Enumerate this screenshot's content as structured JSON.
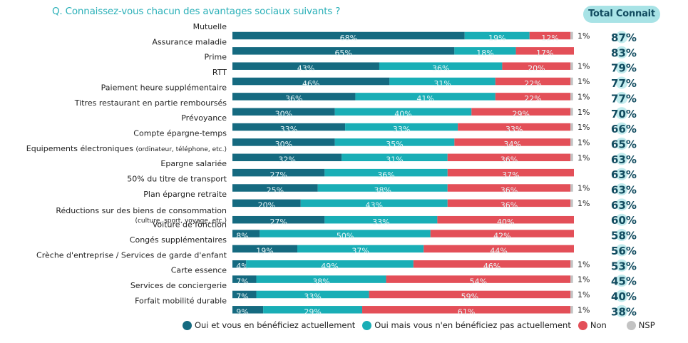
{
  "chart_data": {
    "type": "bar",
    "orientation": "horizontal",
    "stacked": true,
    "title": "Q. Connaissez-vous chacun des avantages sociaux suivants ?",
    "total_header": "Total Connait",
    "categories": [
      {
        "label": "Mutuelle",
        "sub": ""
      },
      {
        "label": "Assurance maladie",
        "sub": ""
      },
      {
        "label": "Prime",
        "sub": ""
      },
      {
        "label": "RTT",
        "sub": ""
      },
      {
        "label": "Paiement heure supplémentaire",
        "sub": ""
      },
      {
        "label": "Titres restaurant en partie remboursés",
        "sub": ""
      },
      {
        "label": "Prévoyance",
        "sub": ""
      },
      {
        "label": "Compte épargne-temps",
        "sub": ""
      },
      {
        "label": "Equipements électroniques",
        "inline_sub": "(ordinateur, téléphone, etc.)",
        "sub": ""
      },
      {
        "label": "Epargne salariée",
        "sub": ""
      },
      {
        "label": "50% du titre de transport",
        "sub": ""
      },
      {
        "label": "Plan épargne retraite",
        "sub": ""
      },
      {
        "label": "Réductions sur des biens de consommation",
        "sub": "(culture, sport, voyage, etc.)"
      },
      {
        "label": "Voiture de fonction",
        "sub": ""
      },
      {
        "label": "Congés supplémentaires",
        "sub": ""
      },
      {
        "label": "Crèche d'entreprise / Services de garde d'enfant",
        "sub": ""
      },
      {
        "label": "Carte essence",
        "sub": ""
      },
      {
        "label": "Services de conciergerie",
        "sub": ""
      },
      {
        "label": "Forfait mobilité durable",
        "sub": ""
      }
    ],
    "series": [
      {
        "name": "Oui et vous en bénéficiez actuellement",
        "color": "#156a80",
        "values": [
          68,
          65,
          43,
          46,
          36,
          30,
          33,
          30,
          32,
          27,
          25,
          20,
          27,
          8,
          19,
          4,
          7,
          7,
          9
        ]
      },
      {
        "name": "Oui mais vous n'en bénéficiez pas actuellement",
        "color": "#19aeb6",
        "values": [
          19,
          18,
          36,
          31,
          41,
          40,
          33,
          35,
          31,
          36,
          38,
          43,
          33,
          50,
          37,
          49,
          38,
          33,
          29
        ]
      },
      {
        "name": "Non",
        "color": "#e34f58",
        "values": [
          12,
          17,
          20,
          22,
          22,
          29,
          33,
          34,
          36,
          37,
          36,
          36,
          40,
          42,
          44,
          46,
          54,
          59,
          61
        ]
      },
      {
        "name": "NSP",
        "color": "#c3c3c3",
        "values": [
          1,
          0,
          1,
          1,
          1,
          1,
          1,
          1,
          1,
          0,
          1,
          1,
          0,
          0,
          0,
          1,
          1,
          1,
          1
        ]
      }
    ],
    "totals": [
      87,
      83,
      79,
      77,
      77,
      70,
      66,
      65,
      63,
      63,
      63,
      63,
      60,
      58,
      56,
      53,
      45,
      40,
      38
    ],
    "xlim": [
      0,
      100
    ],
    "grid": false,
    "legend_position": "bottom",
    "value_format": "percent"
  }
}
